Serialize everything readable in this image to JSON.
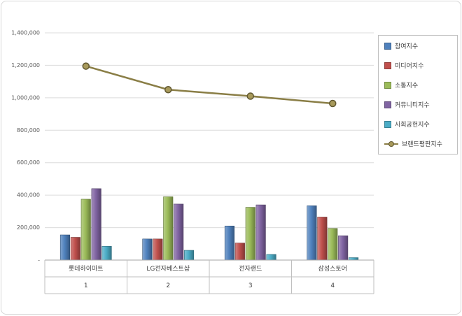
{
  "chart_data": {
    "type": "bar",
    "subtype": "grouped-3d-bars-with-line-overlay",
    "title": "",
    "categories": [
      "롯데하이마트",
      "LG전자베스트샵",
      "전자랜드",
      "삼성스토어"
    ],
    "category_numbers": [
      "1",
      "2",
      "3",
      "4"
    ],
    "series": [
      {
        "name": "참여지수",
        "type": "bar",
        "color": "#4F81BD",
        "values": [
          155000,
          130000,
          210000,
          335000
        ]
      },
      {
        "name": "미디어지수",
        "type": "bar",
        "color": "#C0504D",
        "values": [
          140000,
          130000,
          105000,
          265000
        ]
      },
      {
        "name": "소통지수",
        "type": "bar",
        "color": "#9BBB59",
        "values": [
          375000,
          390000,
          325000,
          195000
        ]
      },
      {
        "name": "커뮤니티지수",
        "type": "bar",
        "color": "#8064A2",
        "values": [
          440000,
          345000,
          340000,
          150000
        ]
      },
      {
        "name": "사회공헌지수",
        "type": "bar",
        "color": "#4BACC6",
        "values": [
          85000,
          60000,
          35000,
          15000
        ]
      }
    ],
    "line_series": {
      "name": "브랜드평판지수",
      "type": "line",
      "color": "#8A7E46",
      "marker_fill": "#A89A5B",
      "values": [
        1195000,
        1050000,
        1010000,
        965000
      ]
    },
    "y_axis": {
      "min": 0,
      "max": 1400000,
      "step": 200000,
      "tick_labels": [
        "-",
        "200,000",
        "400,000",
        "600,000",
        "800,000",
        "1,000,000",
        "1,200,000",
        "1,400,000"
      ]
    },
    "grid": true,
    "legend_position": "right"
  }
}
